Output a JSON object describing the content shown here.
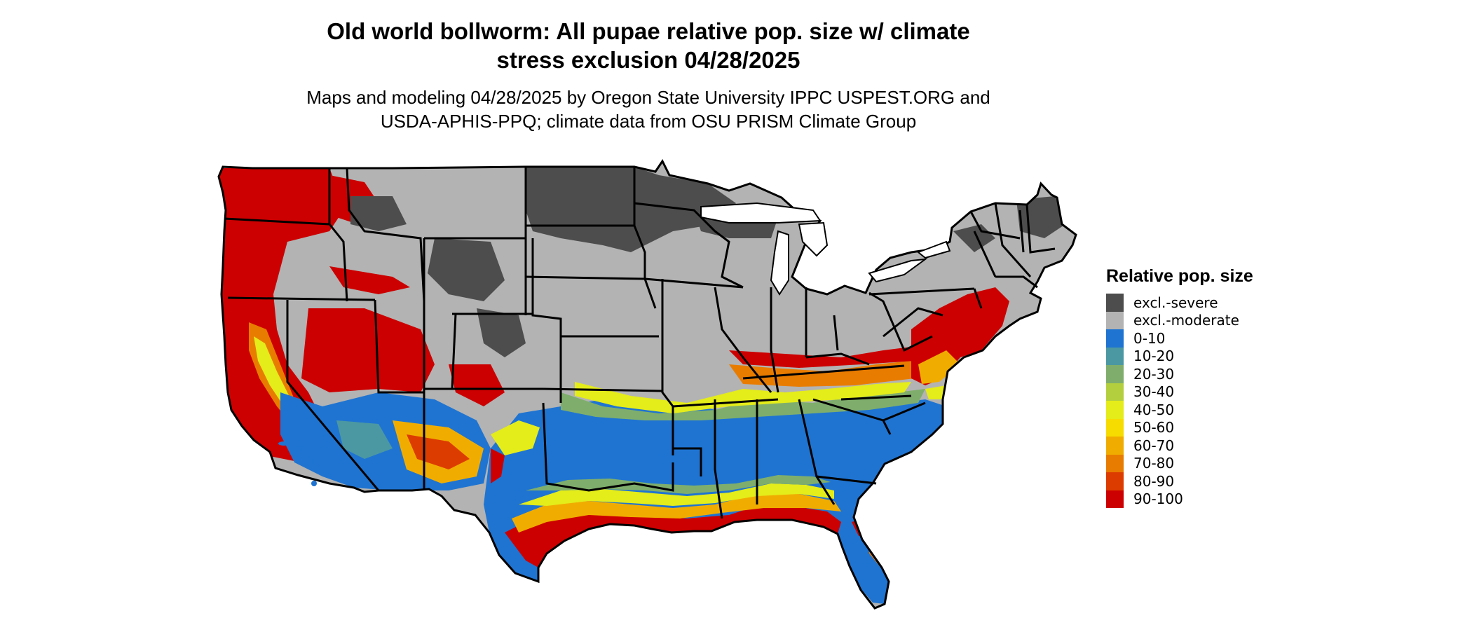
{
  "title_lines": [
    "Old world bollworm: All pupae relative pop. size w/ climate",
    "stress exclusion 04/28/2025"
  ],
  "subtitle_lines": [
    "Maps and modeling 04/28/2025 by Oregon State University IPPC USPEST.ORG and",
    "USDA-APHIS-PPQ; climate data from OSU PRISM Climate Group"
  ],
  "legend": {
    "title": "Relative pop. size",
    "items": [
      {
        "label": "excl.-severe",
        "color": "#4d4d4d"
      },
      {
        "label": "excl.-moderate",
        "color": "#b3b3b3"
      },
      {
        "label": "0-10",
        "color": "#1f74d1"
      },
      {
        "label": "10-20",
        "color": "#4b98a2"
      },
      {
        "label": "20-30",
        "color": "#7fae6c"
      },
      {
        "label": "30-40",
        "color": "#b4cf3e"
      },
      {
        "label": "40-50",
        "color": "#e4ec1a"
      },
      {
        "label": "50-60",
        "color": "#f7dc00"
      },
      {
        "label": "60-70",
        "color": "#f0ad00"
      },
      {
        "label": "70-80",
        "color": "#e87c00"
      },
      {
        "label": "80-90",
        "color": "#dd3c00"
      },
      {
        "label": "90-100",
        "color": "#cc0000"
      }
    ]
  }
}
